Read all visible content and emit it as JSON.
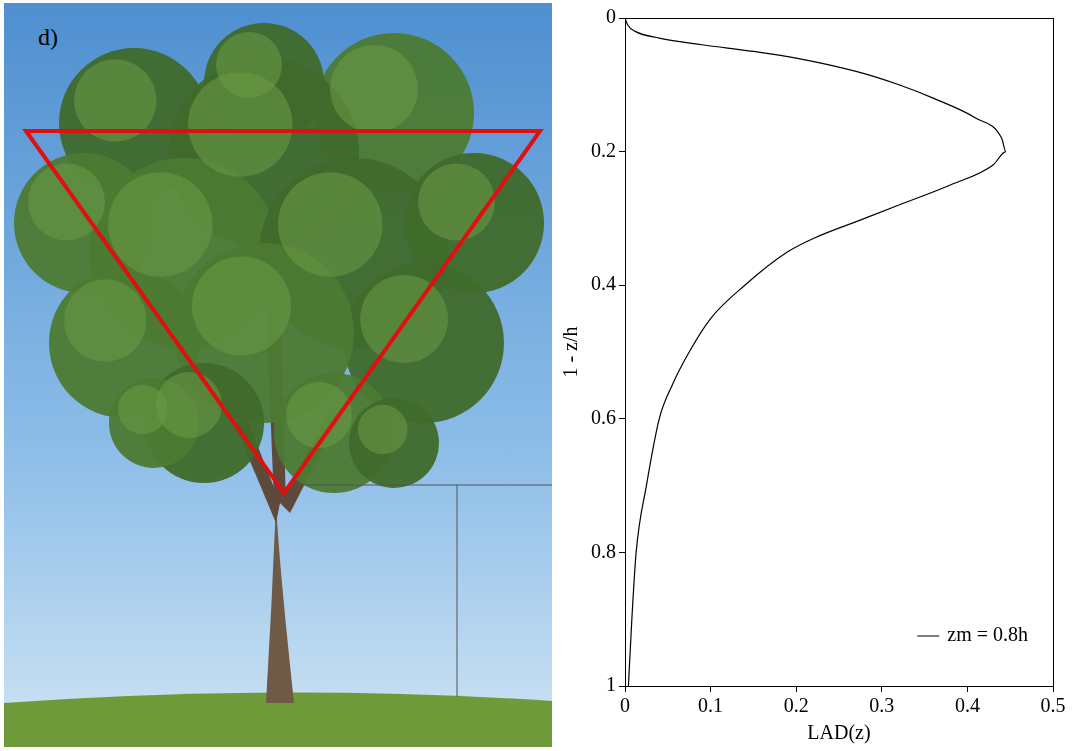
{
  "panel_label": "d)",
  "chart_data": {
    "type": "line",
    "x": [
      0,
      0.003,
      0.012,
      0.04,
      0.09,
      0.15,
      0.2,
      0.27,
      0.32,
      0.36,
      0.41,
      0.44,
      0.445,
      0.43,
      0.38,
      0.32,
      0.28,
      0.22,
      0.19,
      0.14,
      0.1,
      0.075,
      0.055,
      0.04,
      0.025,
      0.013,
      0.008,
      0.004
    ],
    "series": [
      {
        "name": "zm = 0.8h",
        "color": "#000000",
        "values": [
          0,
          0.01,
          0.02,
          0.03,
          0.04,
          0.05,
          0.06,
          0.08,
          0.1,
          0.12,
          0.15,
          0.18,
          0.2,
          0.22,
          0.25,
          0.28,
          0.3,
          0.33,
          0.35,
          0.4,
          0.45,
          0.5,
          0.55,
          0.6,
          0.7,
          0.8,
          0.9,
          1
        ]
      }
    ],
    "x_label": "LAD(z)",
    "y_label": "1 - z/h",
    "xlim": [
      0,
      0.5
    ],
    "xticks": [
      0,
      0.1,
      0.2,
      0.3,
      0.4,
      0.5
    ],
    "ylim": [
      1,
      0
    ],
    "yticks": [
      0,
      0.2,
      0.4,
      0.6,
      0.8,
      1
    ],
    "grid": false,
    "legend": "bottom-right"
  }
}
